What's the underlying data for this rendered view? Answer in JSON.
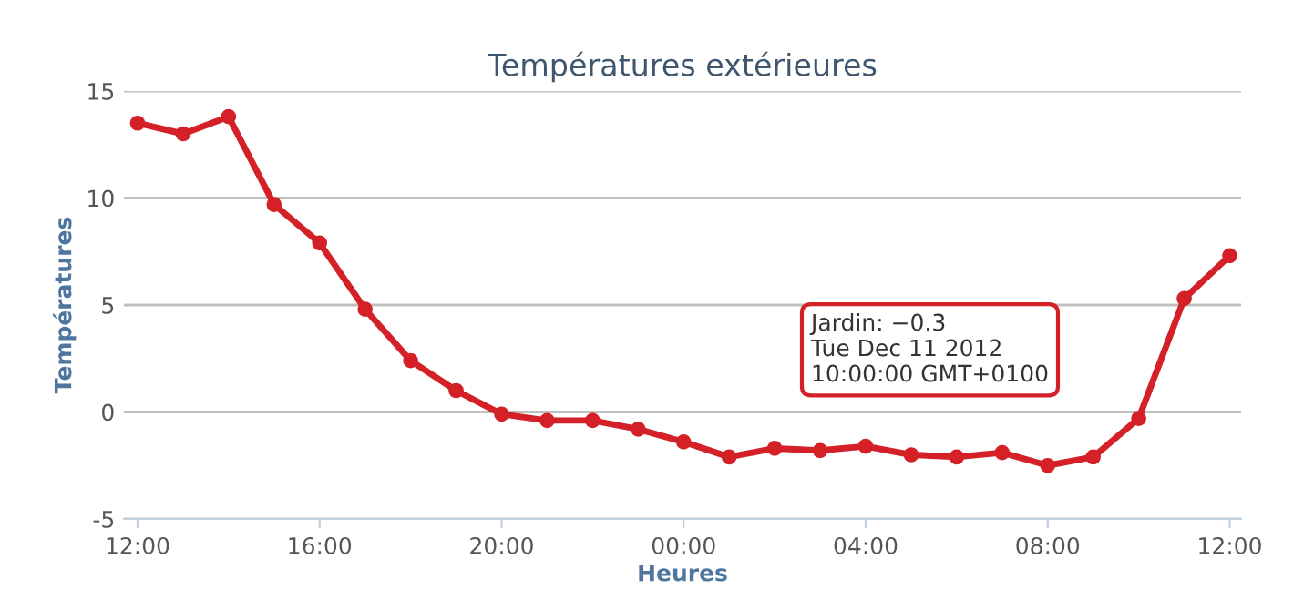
{
  "chart_data": {
    "type": "line",
    "title": "Températures extérieures",
    "xlabel": "Heures",
    "ylabel": "Températures",
    "x": [
      "2012-12-10T12:00",
      "2012-12-10T13:00",
      "2012-12-10T14:00",
      "2012-12-10T15:00",
      "2012-12-10T16:00",
      "2012-12-10T17:00",
      "2012-12-10T18:00",
      "2012-12-10T19:00",
      "2012-12-10T20:00",
      "2012-12-10T21:00",
      "2012-12-10T22:00",
      "2012-12-10T23:00",
      "2012-12-11T00:00",
      "2012-12-11T01:00",
      "2012-12-11T02:00",
      "2012-12-11T03:00",
      "2012-12-11T04:00",
      "2012-12-11T05:00",
      "2012-12-11T06:00",
      "2012-12-11T07:00",
      "2012-12-11T08:00",
      "2012-12-11T09:00",
      "2012-12-11T10:00",
      "2012-12-11T11:00",
      "2012-12-11T12:00"
    ],
    "series": [
      {
        "color": "#d42027",
        "values": [
          13.5,
          13.0,
          13.8,
          9.7,
          7.9,
          4.8,
          2.4,
          1.0,
          -0.1,
          -0.4,
          -0.4,
          -0.8,
          -1.4,
          -2.1,
          -1.7,
          -1.8,
          -1.6,
          -2.0,
          -2.1,
          -1.9,
          -2.5,
          -2.1,
          -0.3,
          5.3,
          7.3
        ]
      }
    ],
    "xlim": [
      "2012-12-10T11:42",
      "2012-12-11T12:15"
    ],
    "xticks": [
      {
        "value": "2012-12-10T12:00",
        "label": "12:00"
      },
      {
        "value": "2012-12-10T16:00",
        "label": "16:00"
      },
      {
        "value": "2012-12-10T20:00",
        "label": "20:00"
      },
      {
        "value": "2012-12-11T00:00",
        "label": "00:00"
      },
      {
        "value": "2012-12-11T04:00",
        "label": "04:00"
      },
      {
        "value": "2012-12-11T08:00",
        "label": "08:00"
      },
      {
        "value": "2012-12-11T12:00",
        "label": "12:00"
      }
    ],
    "ylim": [
      -5,
      15
    ],
    "yticks": [
      -5,
      0,
      5,
      10,
      15
    ],
    "grid": "y",
    "marker": "circle",
    "line_style": "solid",
    "annotations": [
      "Jardin: −0.3\nTue Dec 11 2012\n10:00:00 GMT+0100"
    ]
  }
}
